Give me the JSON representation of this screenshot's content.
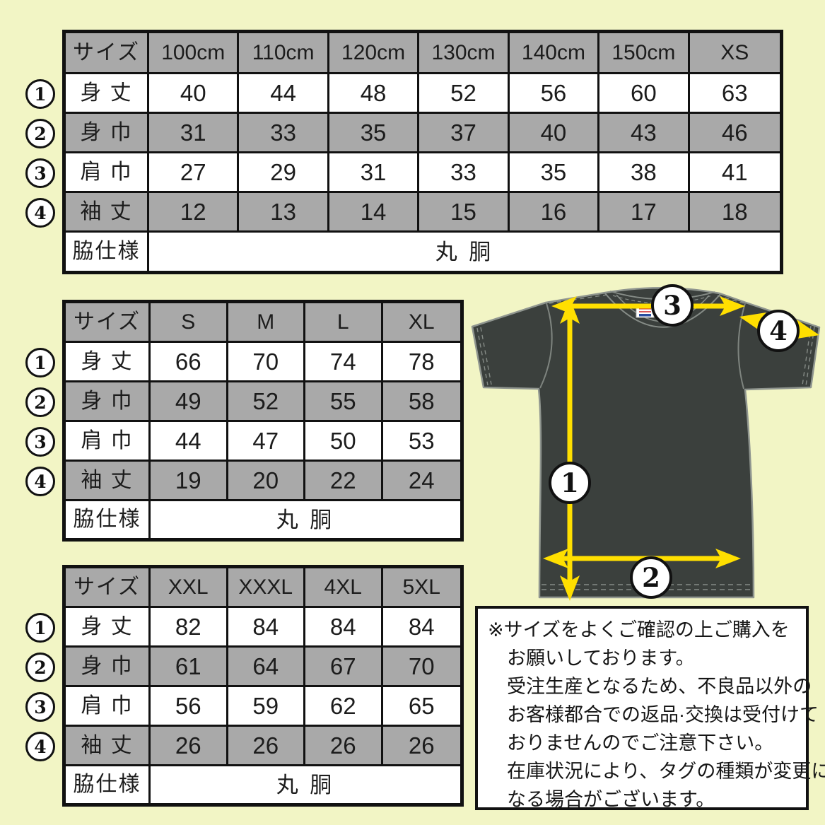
{
  "measure_badges": [
    "1",
    "2",
    "3",
    "4"
  ],
  "tables": [
    {
      "name": "kids-sizes",
      "header": [
        "サイズ",
        "100cm",
        "110cm",
        "120cm",
        "130cm",
        "140cm",
        "150cm",
        "XS"
      ],
      "rows": [
        {
          "label": "身 丈",
          "values": [
            "40",
            "44",
            "48",
            "52",
            "56",
            "60",
            "63"
          ]
        },
        {
          "label": "身 巾",
          "values": [
            "31",
            "33",
            "35",
            "37",
            "40",
            "43",
            "46"
          ]
        },
        {
          "label": "肩 巾",
          "values": [
            "27",
            "29",
            "31",
            "33",
            "35",
            "38",
            "41"
          ]
        },
        {
          "label": "袖 丈",
          "values": [
            "12",
            "13",
            "14",
            "15",
            "16",
            "17",
            "18"
          ]
        }
      ],
      "footer": {
        "label": "脇仕様",
        "value": "丸 胴"
      }
    },
    {
      "name": "adult-sizes",
      "header": [
        "サイズ",
        "S",
        "M",
        "L",
        "XL"
      ],
      "rows": [
        {
          "label": "身 丈",
          "values": [
            "66",
            "70",
            "74",
            "78"
          ]
        },
        {
          "label": "身 巾",
          "values": [
            "49",
            "52",
            "55",
            "58"
          ]
        },
        {
          "label": "肩 巾",
          "values": [
            "44",
            "47",
            "50",
            "53"
          ]
        },
        {
          "label": "袖 丈",
          "values": [
            "19",
            "20",
            "22",
            "24"
          ]
        }
      ],
      "footer": {
        "label": "脇仕様",
        "value": "丸 胴"
      }
    },
    {
      "name": "plus-sizes",
      "header": [
        "サイズ",
        "XXL",
        "XXXL",
        "4XL",
        "5XL"
      ],
      "rows": [
        {
          "label": "身 丈",
          "values": [
            "82",
            "84",
            "84",
            "84"
          ]
        },
        {
          "label": "身 巾",
          "values": [
            "61",
            "64",
            "67",
            "70"
          ]
        },
        {
          "label": "肩 巾",
          "values": [
            "56",
            "59",
            "62",
            "65"
          ]
        },
        {
          "label": "袖 丈",
          "values": [
            "26",
            "26",
            "26",
            "26"
          ]
        }
      ],
      "footer": {
        "label": "脇仕様",
        "value": "丸 胴"
      }
    }
  ],
  "note": {
    "lines": [
      "※サイズをよくご確認の上ご購入を",
      "お願いしております。",
      "受注生産となるため、不良品以外の",
      "お客様都合での返品·交換は受付けて",
      "おりませんのでご注意下さい。",
      "在庫状況により、タグの種類が変更に",
      "なる場合がございます。"
    ]
  },
  "colors": {
    "background": "#f2f5c5",
    "cell_gray": "#a9a9a9",
    "border": "#111111",
    "shirt": "#3b403d",
    "arrow_yellow": "#ffdf00"
  }
}
